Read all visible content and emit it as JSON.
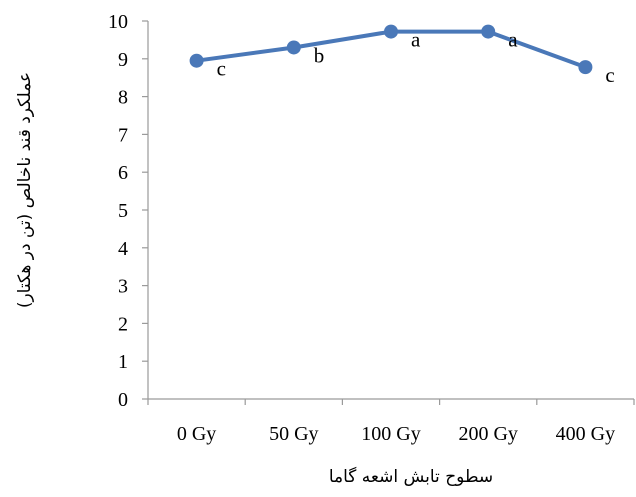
{
  "chart_data": {
    "type": "line",
    "title": "",
    "xlabel": "سطوح تابش اشعه گاما",
    "ylabel": "عملکرد قند ناخالص (تن در هکتار)",
    "categories": [
      "0 Gy",
      "50 Gy",
      "100 Gy",
      "200 Gy",
      "400 Gy"
    ],
    "series": [
      {
        "values": [
          8.95,
          9.3,
          9.72,
          9.72,
          8.78
        ],
        "point_labels": [
          "c",
          "b",
          "a",
          "a",
          "c"
        ],
        "color": "#4a78b8"
      }
    ],
    "ylim": [
      0,
      10
    ],
    "yticks": [
      "0",
      "1",
      "2",
      "3",
      "4",
      "5",
      "6",
      "7",
      "8",
      "9",
      "10"
    ],
    "grid": false,
    "legend": "none"
  }
}
